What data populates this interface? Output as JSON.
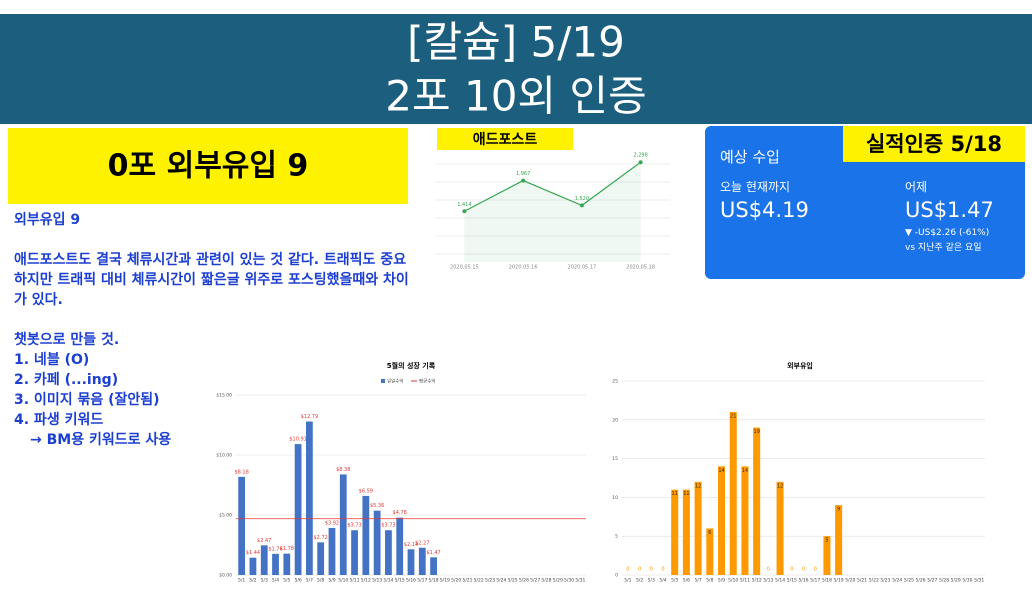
{
  "header": {
    "title_lines": [
      "[칼슘] 5/19",
      "2포 10외 인증"
    ]
  },
  "summary_box": "0포 외부유입 9",
  "notes": {
    "heading": "외부유입 9",
    "paragraph": "애드포스트도 결국 체류시간과 관련이 있는 것 같다. 트래픽도 중요하지만 트래픽 대비 체류시간이 짧은글 위주로 포스팅했을때와 차이가 있다.",
    "todo_title": "챗봇으로 만들 것.",
    "todo": [
      "1. 네블 (O)",
      "2. 카페 (...ing)",
      "3. 이미지 묶음 (잘안됨)",
      "4. 파생 키워드",
      "→ BM용 키워드로 사용"
    ]
  },
  "revenue_card": {
    "label": "예상 수입",
    "badge": "실적인증 5/18",
    "today_label": "오늘 현재까지",
    "today_value": "US$4.19",
    "yesterday_label": "어제",
    "yesterday_value": "US$1.47",
    "change": "▼ -US$2.26 (-61%)",
    "compare": "vs 지난주 같은 요일"
  },
  "chart_data": [
    {
      "type": "line",
      "title": "애드포스트",
      "x": [
        "2020.05.15",
        "2020.05.16",
        "2020.05.17",
        "2020.05.18"
      ],
      "series": [
        {
          "color": "#34a853",
          "values": [
            1414,
            1967,
            1520,
            2298
          ],
          "value_labels": [
            "1,414",
            "1,967",
            "1,520",
            "2,298"
          ]
        }
      ],
      "ylim": [
        500,
        2500
      ]
    },
    {
      "type": "bar",
      "title": "5월의 성장 기록",
      "categories": [
        "5/1",
        "5/2",
        "5/3",
        "5/4",
        "5/5",
        "5/6",
        "5/7",
        "5/8",
        "5/9",
        "5/10",
        "5/11",
        "5/12",
        "5/13",
        "5/14",
        "5/15",
        "5/16",
        "5/17",
        "5/18",
        "5/19",
        "5/20",
        "5/21",
        "5/22",
        "5/23",
        "5/24",
        "5/25",
        "5/26",
        "5/27",
        "5/28",
        "5/29",
        "5/30",
        "5/31"
      ],
      "series": [
        {
          "name": "일일수익",
          "color": "#4472c4",
          "values": [
            8.18,
            1.44,
            2.47,
            1.76,
            1.78,
            10.91,
            12.79,
            2.72,
            3.92,
            8.38,
            3.73,
            6.59,
            5.36,
            3.73,
            4.78,
            2.14,
            2.27,
            1.47,
            null,
            null,
            null,
            null,
            null,
            null,
            null,
            null,
            null,
            null,
            null,
            null,
            null
          ],
          "value_labels": [
            "$8.18",
            "$1.44",
            "$2.47",
            "$1.76",
            "$1.78",
            "$10.91",
            "$12.79",
            "$2.72",
            "$3.92",
            "$8.38",
            "$3.73",
            "$6.59",
            "$5.36",
            "$3.73",
            "$4.78",
            "$2.14",
            "$2.27",
            "$1.47",
            null,
            null,
            null,
            null,
            null,
            null,
            null,
            null,
            null,
            null,
            null,
            null,
            null
          ]
        }
      ],
      "average": {
        "name": "평균수익",
        "color": "#e53935",
        "value": 4.69
      },
      "ylim": [
        0,
        15
      ],
      "yticks": [
        {
          "value": 0,
          "label": "$0.00"
        },
        {
          "value": 5,
          "label": "$5.00"
        },
        {
          "value": 10,
          "label": "$10.00"
        },
        {
          "value": 15,
          "label": "$15.00"
        }
      ],
      "grid": true
    },
    {
      "type": "bar",
      "title": "외부유입",
      "categories": [
        "5/1",
        "5/2",
        "5/3",
        "5/4",
        "5/5",
        "5/6",
        "5/7",
        "5/8",
        "5/9",
        "5/10",
        "5/11",
        "5/12",
        "5/13",
        "5/14",
        "5/15",
        "5/16",
        "5/17",
        "5/18",
        "5/19",
        "5/20",
        "5/21",
        "5/22",
        "5/23",
        "5/24",
        "5/25",
        "5/26",
        "5/27",
        "5/28",
        "5/29",
        "5/30",
        "5/31"
      ],
      "series": [
        {
          "color": "#ff9900",
          "values": [
            0,
            0,
            0,
            0,
            11,
            11,
            12,
            6,
            14,
            21,
            14,
            19,
            0,
            12,
            0,
            0,
            0,
            5,
            9,
            null,
            null,
            null,
            null,
            null,
            null,
            null,
            null,
            null,
            null,
            null,
            null
          ]
        }
      ],
      "ylim": [
        0,
        25
      ],
      "yticks": [
        0,
        5,
        10,
        15,
        20,
        25
      ],
      "grid": true
    }
  ]
}
